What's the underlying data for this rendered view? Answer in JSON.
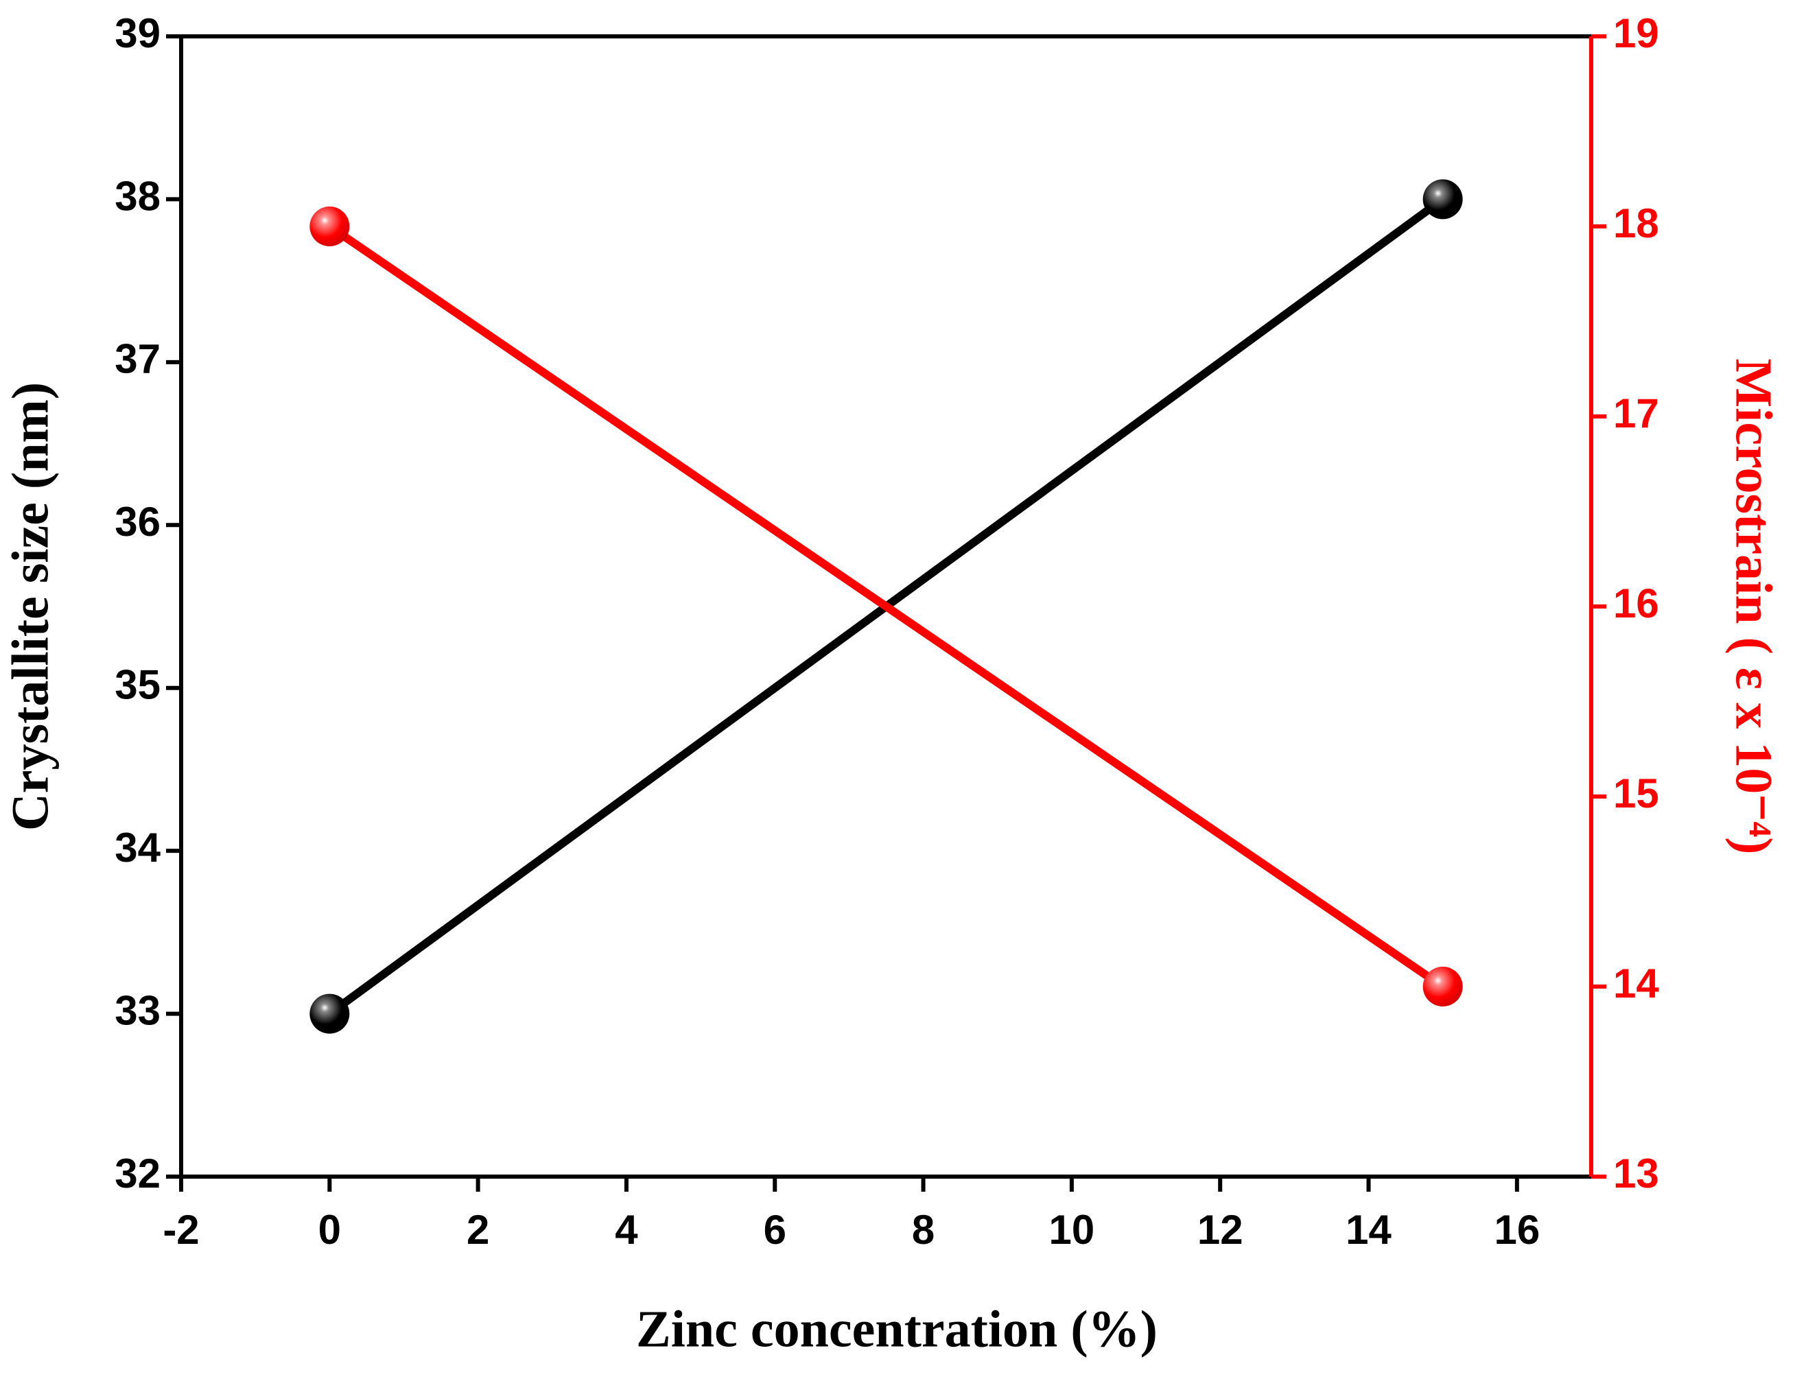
{
  "chart_data": {
    "type": "line",
    "xlabel": "Zinc concentration (%)",
    "ylabel": "Crystallite size (nm)",
    "y2label": "Microstrain ( ε x 10⁻⁴)",
    "xlim": [
      -2,
      17
    ],
    "xticks": [
      -2,
      0,
      2,
      4,
      6,
      8,
      10,
      12,
      14,
      16
    ],
    "ylim": [
      32,
      39
    ],
    "yticks": [
      32,
      33,
      34,
      35,
      36,
      37,
      38,
      39
    ],
    "y2lim": [
      13,
      19
    ],
    "y2ticks": [
      13,
      14,
      15,
      16,
      17,
      18,
      19
    ],
    "y2color": "#ff0000",
    "series": [
      {
        "color": "#000000",
        "x": [
          0,
          15
        ],
        "values": [
          33,
          38
        ]
      },
      {
        "color": "#ff0000",
        "axis": "y2",
        "x": [
          0,
          15
        ],
        "values": [
          18,
          14
        ]
      }
    ]
  }
}
